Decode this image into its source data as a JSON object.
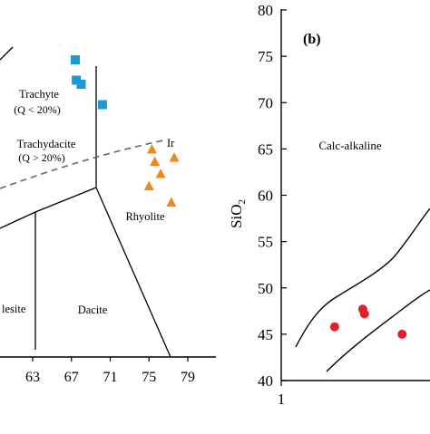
{
  "chart_data": [
    {
      "panel": "left",
      "type": "scatter",
      "xlim": [
        59,
        79
      ],
      "x_ticks": [
        63,
        67,
        71,
        75,
        79
      ],
      "field_labels": {
        "trachyte": "Trachyte",
        "trachyte_q": "(Q < 20%)",
        "trachydacite": "Trachydacite",
        "trachydacite_q": "(Q > 20%)",
        "ir": "Ir",
        "rhyolite": "Rhyolite",
        "andesite_partial": "lesite",
        "dacite": "Dacite"
      },
      "series": [
        {
          "marker": "square",
          "color": "#1a9ad6",
          "points": [
            [
              67.4,
              11.8
            ],
            [
              67.5,
              11.3
            ],
            [
              68.0,
              11.2
            ],
            [
              70.2,
              10.7
            ]
          ]
        },
        {
          "marker": "triangle",
          "color": "#ec8a1e",
          "points": [
            [
              75.3,
              9.6
            ],
            [
              76.2,
              9.0
            ],
            [
              77.6,
              9.4
            ],
            [
              75.6,
              9.3
            ],
            [
              75.0,
              8.7
            ],
            [
              77.3,
              8.3
            ]
          ]
        }
      ]
    },
    {
      "panel": "right",
      "type": "scatter",
      "panel_label": "(b)",
      "ylabel": "SiO",
      "ylabel_sub": "2",
      "ylim": [
        40,
        80
      ],
      "y_ticks": [
        40,
        45,
        50,
        55,
        60,
        65,
        70,
        75,
        80
      ],
      "x_ticks": [
        1
      ],
      "field_label": "Calc-alkaline",
      "series": [
        {
          "marker": "circle",
          "color": "#e0202a",
          "points": [
            [
              2.45,
              47.7
            ],
            [
              2.48,
              47.2
            ],
            [
              1.95,
              45.8
            ],
            [
              3.15,
              45.0
            ]
          ]
        }
      ]
    }
  ]
}
